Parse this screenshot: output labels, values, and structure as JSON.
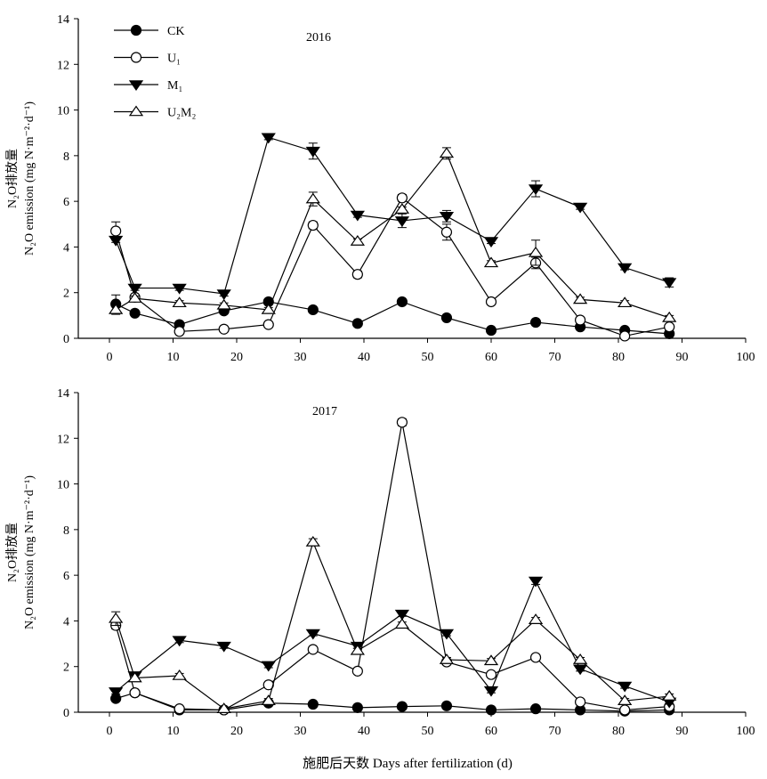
{
  "xlabel": "施肥后天数 Days after fertilization (d)",
  "ylabel_cn": "N₂O排放量",
  "ylabel_en": "N₂O emission (mg N·m⁻²·d⁻¹)",
  "legend": [
    {
      "key": "CK",
      "label": "CK",
      "marker": "filled-circle"
    },
    {
      "key": "U1",
      "label": "U₁",
      "marker": "open-circle"
    },
    {
      "key": "M1",
      "label": "M₁",
      "marker": "filled-triangle-down"
    },
    {
      "key": "U2M2",
      "label": "U₂M₂",
      "marker": "open-triangle-up"
    }
  ],
  "chart_data": [
    {
      "type": "line",
      "title": "2016",
      "x": [
        1,
        4,
        11,
        18,
        25,
        32,
        39,
        46,
        53,
        60,
        67,
        74,
        81,
        88
      ],
      "xlim": [
        0,
        100
      ],
      "xticks": [
        0,
        10,
        20,
        30,
        40,
        50,
        60,
        70,
        80,
        90,
        100
      ],
      "ylim": [
        0,
        14
      ],
      "yticks": [
        0,
        2,
        4,
        6,
        8,
        10,
        12,
        14
      ],
      "legend_position": "top-left",
      "series": [
        {
          "name": "CK",
          "values": [
            1.5,
            1.1,
            0.6,
            1.2,
            1.6,
            1.25,
            0.65,
            1.6,
            0.9,
            0.35,
            0.7,
            0.5,
            0.35,
            0.2
          ],
          "errors": [
            0.4,
            0.1,
            0.1,
            0.1,
            0.1,
            0.1,
            0.1,
            0.1,
            0.1,
            0.1,
            0.1,
            0.1,
            0.1,
            0.1
          ]
        },
        {
          "name": "U1",
          "values": [
            4.7,
            1.8,
            0.3,
            0.4,
            0.6,
            4.95,
            2.8,
            6.15,
            4.65,
            1.6,
            3.3,
            0.8,
            0.1,
            0.5
          ],
          "errors": [
            0.4,
            0.1,
            0.1,
            0.1,
            0.1,
            0.15,
            0.15,
            0.15,
            0.35,
            0.1,
            0.25,
            0.1,
            0.1,
            0.1
          ]
        },
        {
          "name": "M1",
          "values": [
            4.3,
            2.2,
            2.2,
            1.95,
            8.8,
            8.2,
            5.4,
            5.15,
            5.35,
            4.25,
            6.55,
            5.75,
            3.1,
            2.45
          ],
          "errors": [
            0.1,
            0.1,
            0.1,
            0.1,
            0.1,
            0.35,
            0.1,
            0.3,
            0.25,
            0.1,
            0.35,
            0.1,
            0.1,
            0.2
          ]
        },
        {
          "name": "U2M2",
          "values": [
            1.25,
            1.75,
            1.55,
            1.45,
            1.25,
            6.1,
            4.25,
            5.65,
            8.1,
            3.3,
            3.75,
            1.7,
            1.55,
            0.9
          ],
          "errors": [
            0.2,
            0.1,
            0.1,
            0.1,
            0.1,
            0.3,
            0.1,
            0.1,
            0.25,
            0.1,
            0.55,
            0.1,
            0.1,
            0.1
          ]
        }
      ]
    },
    {
      "type": "line",
      "title": "2017",
      "x": [
        1,
        4,
        11,
        18,
        25,
        32,
        39,
        46,
        53,
        60,
        67,
        74,
        81,
        88
      ],
      "xlim": [
        0,
        100
      ],
      "xticks": [
        0,
        10,
        20,
        30,
        40,
        50,
        60,
        70,
        80,
        90,
        100
      ],
      "ylim": [
        0,
        14
      ],
      "yticks": [
        0,
        2,
        4,
        6,
        8,
        10,
        12,
        14
      ],
      "series": [
        {
          "name": "CK",
          "values": [
            0.6,
            0.85,
            0.1,
            0.1,
            0.4,
            0.35,
            0.2,
            0.25,
            0.28,
            0.1,
            0.15,
            0.1,
            0.05,
            0.1
          ],
          "errors": [
            0.1,
            0.1,
            0.05,
            0.05,
            0.05,
            0.05,
            0.05,
            0.05,
            0.05,
            0.05,
            0.05,
            0.05,
            0.05,
            0.05
          ]
        },
        {
          "name": "U1",
          "values": [
            3.8,
            0.85,
            0.15,
            0.1,
            1.2,
            2.75,
            1.8,
            12.7,
            2.2,
            1.65,
            2.4,
            0.45,
            0.1,
            0.25
          ],
          "errors": [
            0.15,
            0.1,
            0.05,
            0.05,
            0.1,
            0.1,
            0.1,
            0.15,
            0.1,
            0.1,
            0.1,
            0.1,
            0.05,
            0.05
          ]
        },
        {
          "name": "M1",
          "values": [
            0.9,
            1.6,
            3.15,
            2.9,
            2.05,
            3.45,
            2.9,
            4.3,
            3.45,
            0.95,
            5.75,
            1.9,
            1.15,
            0.45
          ],
          "errors": [
            0.1,
            0.1,
            0.1,
            0.1,
            0.1,
            0.1,
            0.1,
            0.1,
            0.1,
            0.1,
            0.15,
            0.1,
            0.1,
            0.1
          ]
        },
        {
          "name": "U2M2",
          "values": [
            4.1,
            1.5,
            1.6,
            0.15,
            0.5,
            7.45,
            2.7,
            3.85,
            2.3,
            2.25,
            4.05,
            2.3,
            0.5,
            0.7
          ],
          "errors": [
            0.3,
            0.1,
            0.1,
            0.05,
            0.1,
            0.15,
            0.1,
            0.1,
            0.1,
            0.1,
            0.1,
            0.1,
            0.1,
            0.1
          ]
        }
      ]
    }
  ]
}
